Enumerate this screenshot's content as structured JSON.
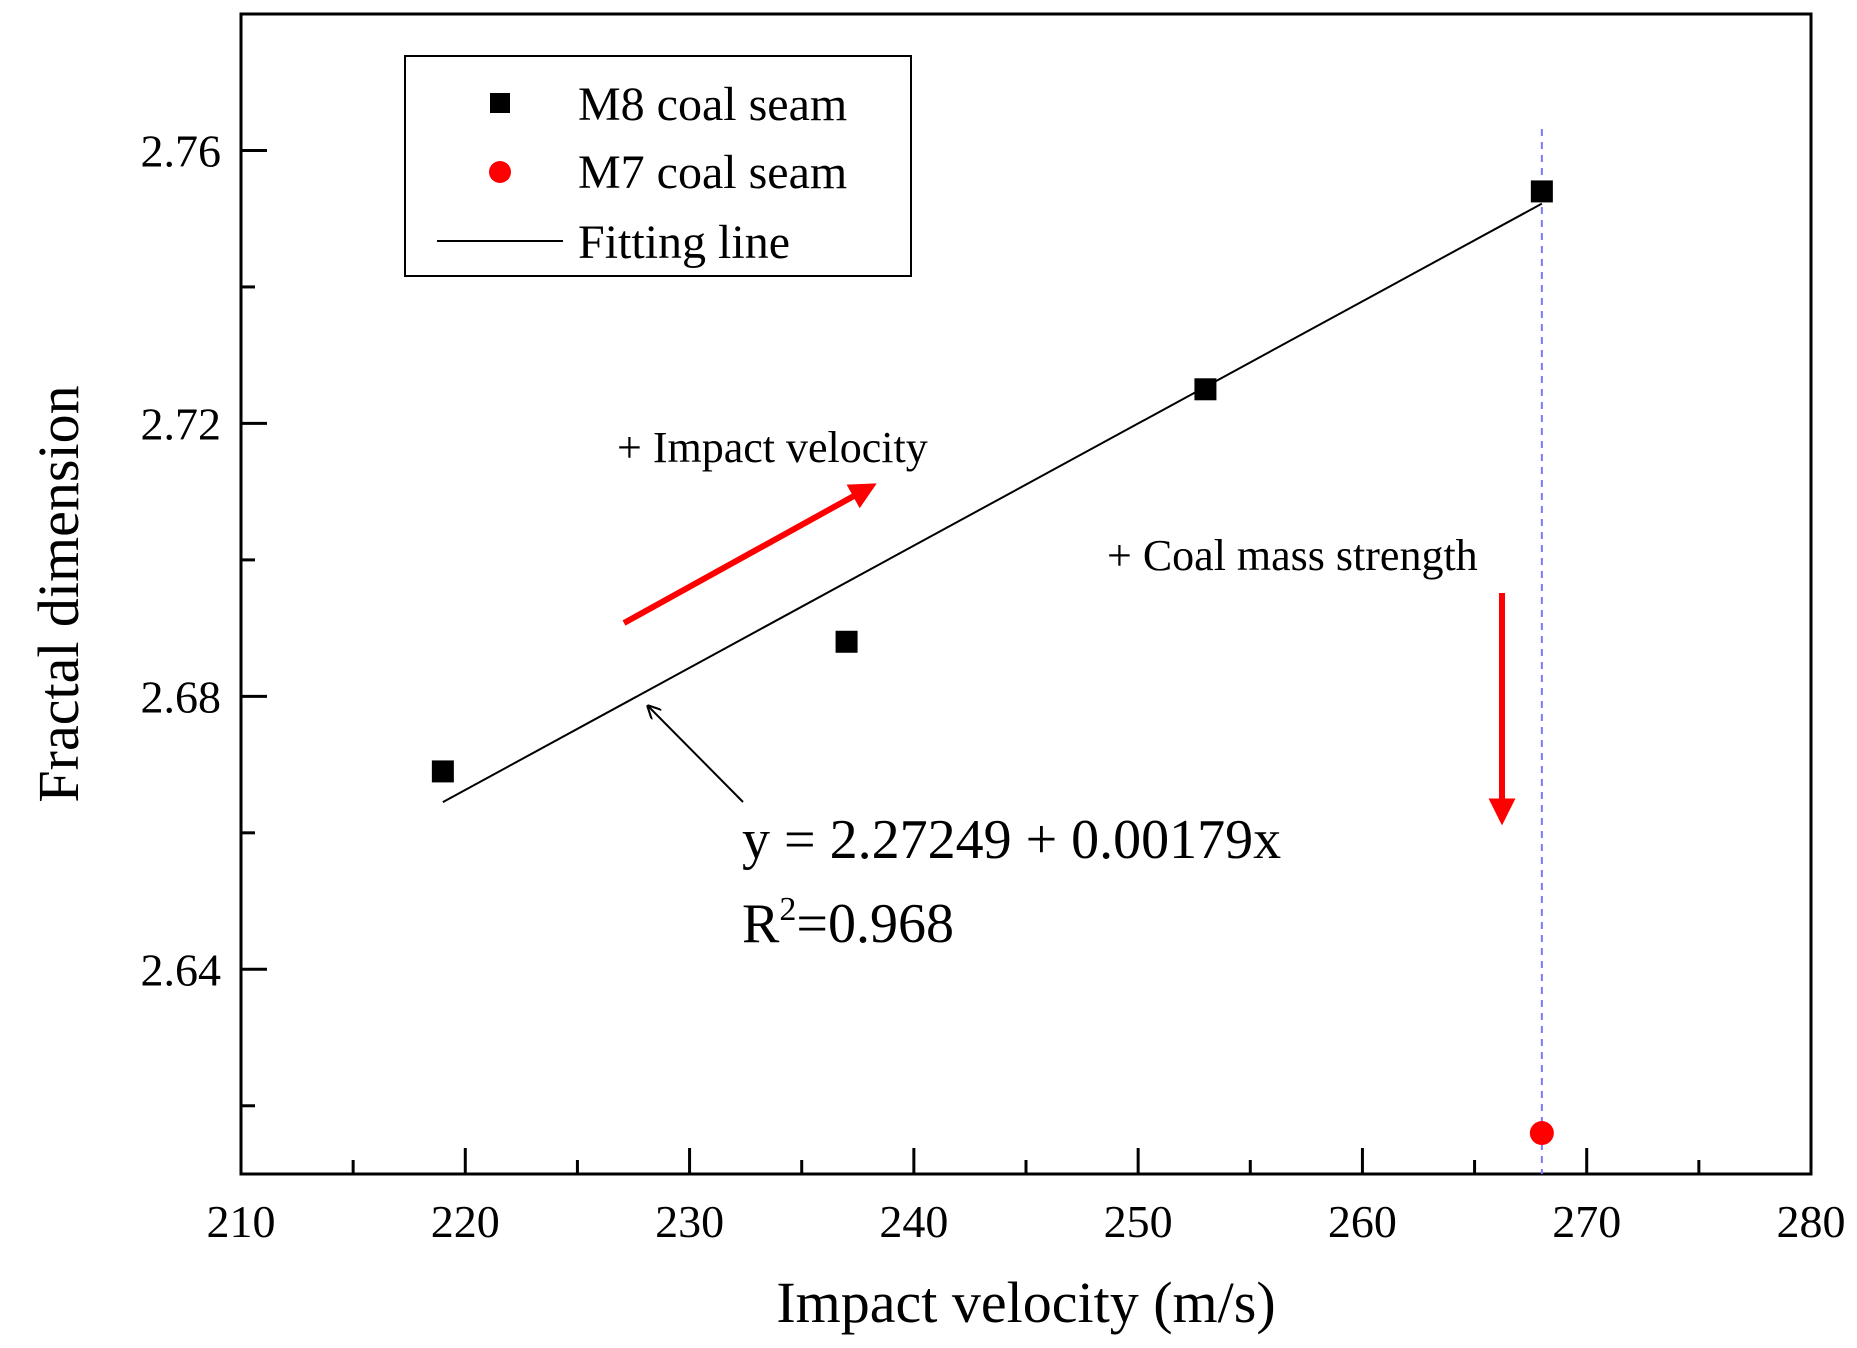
{
  "chart_data": {
    "type": "scatter",
    "xlabel": "Impact velocity (m/s)",
    "ylabel": "Fractal dimension",
    "xlim": [
      210,
      280
    ],
    "ylim": [
      2.61,
      2.78
    ],
    "x_ticks": [
      "210",
      "220",
      "230",
      "240",
      "250",
      "260",
      "270",
      "280"
    ],
    "y_ticks": [
      "2.64",
      "2.68",
      "2.72",
      "2.76"
    ],
    "series": [
      {
        "name": "M8 coal seam",
        "marker": "square",
        "color": "#000000",
        "points": [
          {
            "x": 219,
            "y": 2.669
          },
          {
            "x": 237,
            "y": 2.688
          },
          {
            "x": 253,
            "y": 2.725
          },
          {
            "x": 268,
            "y": 2.754
          }
        ]
      },
      {
        "name": "M7 coal seam",
        "marker": "circle",
        "color": "#ff0000",
        "points": [
          {
            "x": 268,
            "y": 2.616
          }
        ]
      }
    ],
    "fit": {
      "name": "Fitting line",
      "intercept": 2.27249,
      "slope": 0.00179,
      "x_range": [
        219,
        268
      ],
      "equation_text": "y = 2.27249 + 0.00179x",
      "r2_prefix": "R",
      "r2_sup": "2",
      "r2_value": "=0.968"
    },
    "reference_line": {
      "x": 268,
      "color": "#7a7aff"
    },
    "annotations": {
      "impact_velocity": "+ Impact velocity",
      "coal_mass_strength": "+ Coal mass strength",
      "arrow_color": "#ff0000"
    },
    "legend_position": "top-left"
  }
}
